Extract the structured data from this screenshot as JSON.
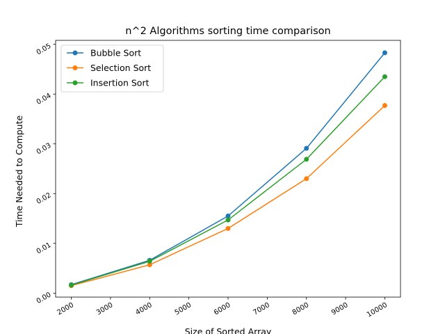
{
  "chart_data": {
    "type": "line",
    "title": "n^2 Algorithms sorting time comparison",
    "xlabel": "Size of Sorted Array",
    "ylabel": "Time Needed to Compute",
    "x": [
      2000,
      4000,
      6000,
      8000,
      10000
    ],
    "x_ticks": [
      "2000",
      "3000",
      "4000",
      "5000",
      "6000",
      "7000",
      "8000",
      "9000",
      "10000"
    ],
    "y_ticks": [
      "0.00",
      "0.01",
      "0.02",
      "0.03",
      "0.04",
      "0.05"
    ],
    "xlim": [
      1600,
      10400
    ],
    "ylim": [
      -0.0008,
      0.0508
    ],
    "grid": false,
    "legend_position": "top-left",
    "series": [
      {
        "name": "Bubble Sort",
        "color": "#1f77b4",
        "values": [
          0.0017,
          0.0066,
          0.0155,
          0.0291,
          0.0483
        ]
      },
      {
        "name": "Selection Sort",
        "color": "#ff7f0e",
        "values": [
          0.0015,
          0.0057,
          0.013,
          0.023,
          0.0377
        ]
      },
      {
        "name": "Insertion Sort",
        "color": "#2ca02c",
        "values": [
          0.0016,
          0.0064,
          0.0147,
          0.0269,
          0.0435
        ]
      }
    ]
  }
}
